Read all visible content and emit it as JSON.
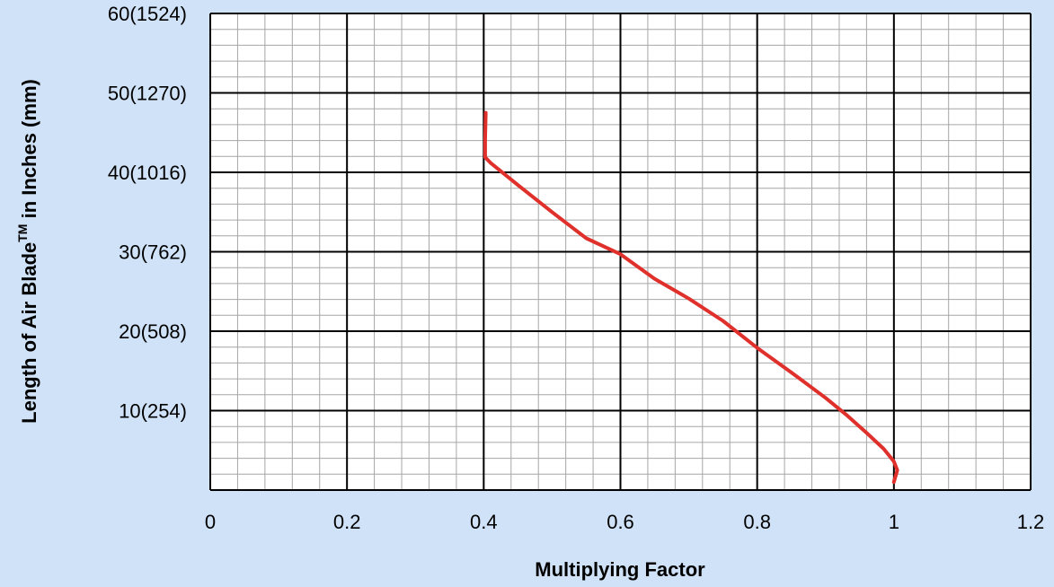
{
  "colors": {
    "background": "#cfe2f7",
    "plot_area": "#ffffff",
    "major_grid": "#000000",
    "minor_grid": "#a6a6a6",
    "series_line": "#e0302b"
  },
  "chart_data": {
    "type": "line",
    "xlabel": "Multiplying Factor",
    "ylabel": {
      "prefix": "Length of Air Blade",
      "superscript": "TM",
      "suffix": " in Inches (mm)"
    },
    "xlim": [
      0,
      1.2
    ],
    "ylim": [
      0,
      60
    ],
    "x_ticks": [
      {
        "value": 0,
        "label": "0"
      },
      {
        "value": 0.2,
        "label": "0.2"
      },
      {
        "value": 0.4,
        "label": "0.4"
      },
      {
        "value": 0.6,
        "label": "0.6"
      },
      {
        "value": 0.8,
        "label": "0.8"
      },
      {
        "value": 1.0,
        "label": "1"
      },
      {
        "value": 1.2,
        "label": "1.2"
      }
    ],
    "y_ticks": [
      {
        "value": 10,
        "label": "10(254)"
      },
      {
        "value": 20,
        "label": "20(508)"
      },
      {
        "value": 30,
        "label": "30(762)"
      },
      {
        "value": 40,
        "label": "40(1016)"
      },
      {
        "value": 50,
        "label": "50(1270)"
      },
      {
        "value": 60,
        "label": "60(1524)"
      }
    ],
    "minor_x_step": 0.04,
    "minor_y_step": 2,
    "grid": true,
    "legend": "none",
    "series": [
      {
        "x": [
          0.403,
          0.402,
          0.402,
          0.41,
          0.45,
          0.5,
          0.55,
          0.6,
          0.65,
          0.7,
          0.75,
          0.8,
          0.85,
          0.9,
          0.93,
          0.96,
          0.985,
          1.0,
          1.005,
          1.0
        ],
        "y": [
          47.5,
          44.0,
          41.9,
          41.2,
          38.4,
          35.0,
          31.7,
          29.7,
          26.6,
          24.1,
          21.3,
          17.9,
          14.8,
          11.6,
          9.5,
          7.2,
          5.2,
          3.6,
          2.5,
          1.0
        ]
      }
    ]
  }
}
